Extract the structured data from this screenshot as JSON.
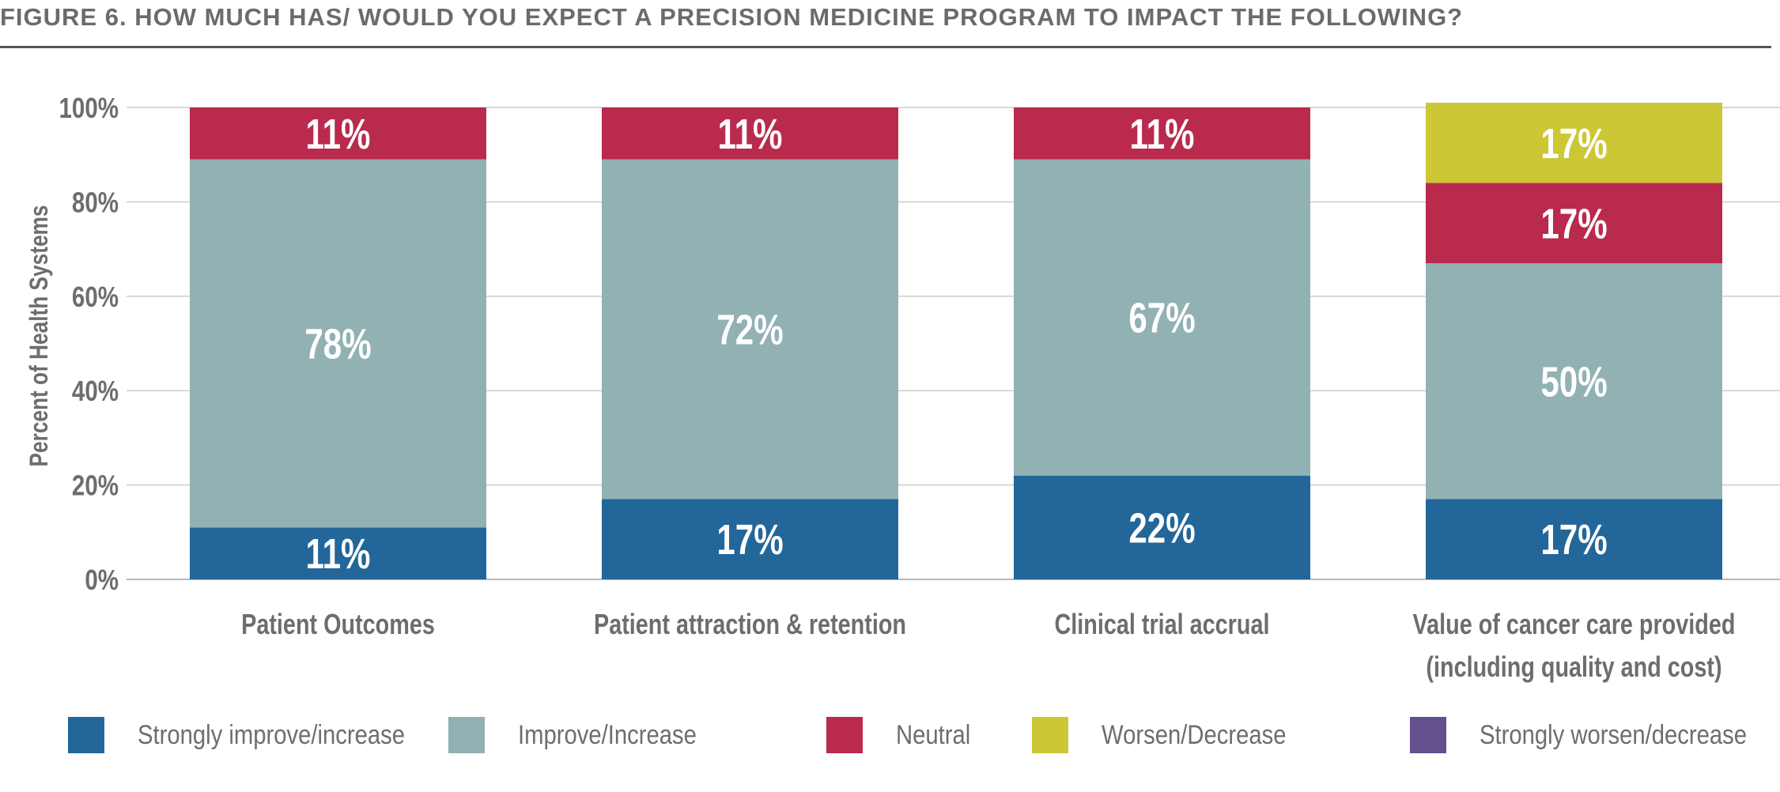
{
  "figure_title": "FIGURE 6. HOW MUCH HAS/ WOULD YOU EXPECT A PRECISION MEDICINE PROGRAM TO IMPACT THE FOLLOWING?",
  "colors": {
    "strongly_improve": "#236699",
    "improve": "#92b1b3",
    "neutral": "#b92a4d",
    "worsen": "#ccc734",
    "strongly_worsen": "#644f8f",
    "axis_text": "#6d6d6d",
    "grid": "#cccccc"
  },
  "chart_data": {
    "type": "bar",
    "stacked": true,
    "title": "FIGURE 6. HOW MUCH HAS/ WOULD YOU EXPECT A PRECISION MEDICINE PROGRAM TO IMPACT THE FOLLOWING?",
    "xlabel": "",
    "ylabel": "Percent of Health Systems",
    "ylim": [
      0,
      100
    ],
    "yticks": [
      "0%",
      "20%",
      "40%",
      "60%",
      "80%",
      "100%"
    ],
    "grid": true,
    "legend_position": "bottom",
    "categories": [
      [
        "Patient Outcomes"
      ],
      [
        "Patient attraction & retention"
      ],
      [
        "Clinical trial accrual"
      ],
      [
        "Value of cancer care provided",
        "(including quality and cost)"
      ]
    ],
    "series": [
      {
        "name": "Strongly improve/increase",
        "color": "#236699",
        "values": [
          11,
          17,
          22,
          17
        ],
        "labels": [
          "11%",
          "17%",
          "22%",
          "17%"
        ]
      },
      {
        "name": "Improve/Increase",
        "color": "#92b1b3",
        "values": [
          78,
          72,
          67,
          50
        ],
        "labels": [
          "78%",
          "72%",
          "67%",
          "50%"
        ]
      },
      {
        "name": "Neutral",
        "color": "#b92a4d",
        "values": [
          11,
          11,
          11,
          17
        ],
        "labels": [
          "11%",
          "11%",
          "11%",
          "17%"
        ]
      },
      {
        "name": "Worsen/Decrease",
        "color": "#ccc734",
        "values": [
          0,
          0,
          0,
          17
        ],
        "labels": [
          "",
          "",
          "",
          "17%"
        ]
      },
      {
        "name": "Strongly worsen/decrease",
        "color": "#644f8f",
        "values": [
          0,
          0,
          0,
          0
        ],
        "labels": [
          "",
          "",
          "",
          ""
        ]
      }
    ]
  }
}
